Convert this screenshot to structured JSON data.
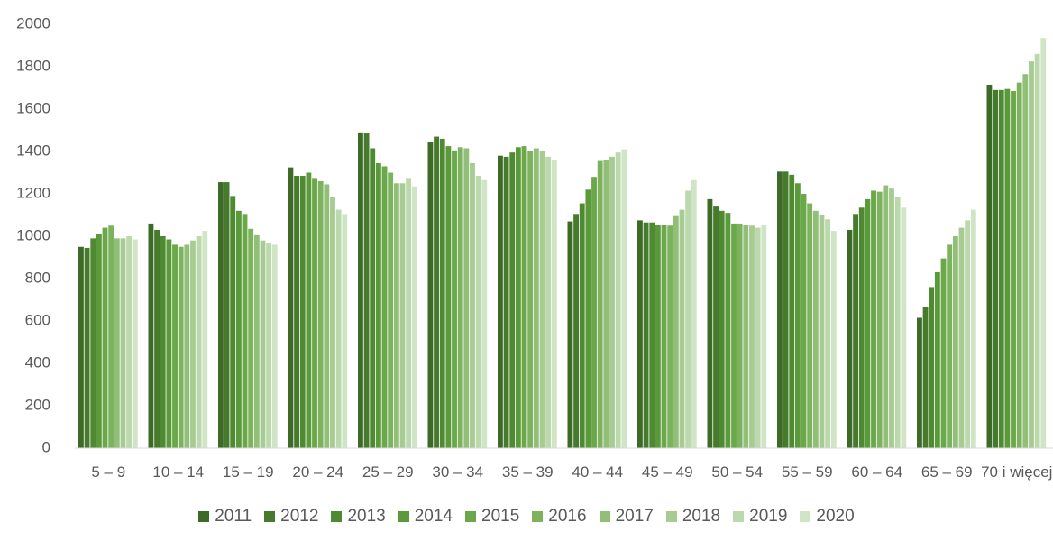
{
  "chart_data": {
    "type": "bar",
    "categories": [
      "5 – 9",
      "10 – 14",
      "15 – 19",
      "20 – 24",
      "25 – 29",
      "30 – 34",
      "35 – 39",
      "40 – 44",
      "45 – 49",
      "50 – 54",
      "55 – 59",
      "60 – 64",
      "65 – 69",
      "70 i więcej"
    ],
    "series": [
      {
        "name": "2011",
        "color": "#3d6b27",
        "values": [
          950,
          1060,
          1255,
          1325,
          1490,
          1445,
          1380,
          1070,
          1075,
          1175,
          1305,
          1030,
          615,
          1715
        ]
      },
      {
        "name": "2012",
        "color": "#467a2d",
        "values": [
          945,
          1030,
          1255,
          1285,
          1485,
          1470,
          1375,
          1105,
          1065,
          1140,
          1305,
          1105,
          665,
          1690
        ]
      },
      {
        "name": "2013",
        "color": "#4f8a33",
        "values": [
          990,
          1000,
          1190,
          1285,
          1415,
          1460,
          1395,
          1155,
          1065,
          1120,
          1290,
          1135,
          760,
          1690
        ]
      },
      {
        "name": "2014",
        "color": "#5a9a3a",
        "values": [
          1010,
          985,
          1120,
          1300,
          1345,
          1425,
          1420,
          1220,
          1055,
          1110,
          1250,
          1175,
          830,
          1695
        ]
      },
      {
        "name": "2015",
        "color": "#6aa84a",
        "values": [
          1040,
          960,
          1105,
          1275,
          1330,
          1405,
          1425,
          1280,
          1055,
          1060,
          1200,
          1215,
          895,
          1685
        ]
      },
      {
        "name": "2016",
        "color": "#7db35f",
        "values": [
          1050,
          950,
          1035,
          1260,
          1300,
          1420,
          1400,
          1355,
          1050,
          1060,
          1155,
          1210,
          960,
          1725
        ]
      },
      {
        "name": "2017",
        "color": "#92bf78",
        "values": [
          990,
          960,
          1005,
          1245,
          1250,
          1415,
          1415,
          1360,
          1095,
          1055,
          1120,
          1240,
          1000,
          1765
        ]
      },
      {
        "name": "2018",
        "color": "#a7cb93",
        "values": [
          990,
          980,
          980,
          1185,
          1250,
          1345,
          1400,
          1375,
          1125,
          1050,
          1100,
          1225,
          1040,
          1825
        ]
      },
      {
        "name": "2019",
        "color": "#bcd8ad",
        "values": [
          1000,
          1000,
          970,
          1125,
          1275,
          1285,
          1375,
          1395,
          1215,
          1040,
          1080,
          1185,
          1075,
          1860
        ]
      },
      {
        "name": "2020",
        "color": "#d0e4c6",
        "values": [
          985,
          1025,
          960,
          1105,
          1235,
          1265,
          1360,
          1410,
          1265,
          1055,
          1025,
          1135,
          1125,
          1935
        ]
      }
    ],
    "ylim": [
      0,
      2000
    ],
    "yticks": [
      0,
      200,
      400,
      600,
      800,
      1000,
      1200,
      1400,
      1600,
      1800,
      2000
    ],
    "grid": false,
    "legend": "bottom"
  }
}
